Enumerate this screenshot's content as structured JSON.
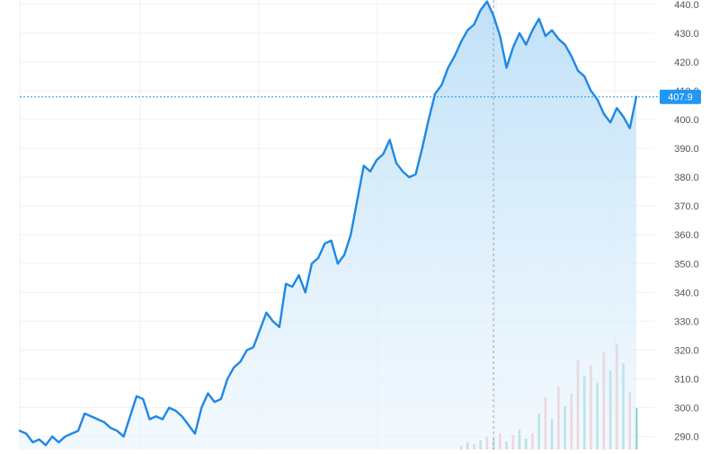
{
  "colors": {
    "line": "#1e88e5",
    "area_top": "#bcdff8",
    "area_bottom": "#eaf5fd",
    "grid": "#eef0f3",
    "axis_text": "#555555",
    "price_badge": "#2196f3",
    "crosshair": "#9aa0a6",
    "volume_up": "#5fbfb4",
    "volume_down": "#ef9a9a"
  },
  "chart_data": {
    "type": "area",
    "title": "",
    "xlabel": "",
    "ylabel": "",
    "ylim": [
      285.5,
      441.5
    ],
    "y_ticks": [
      "290.0",
      "300.0",
      "310.0",
      "320.0",
      "330.0",
      "340.0",
      "350.0",
      "360.0",
      "370.0",
      "380.0",
      "390.0",
      "400.0",
      "410.0",
      "420.0",
      "430.0",
      "440.0"
    ],
    "grid": true,
    "last_price_label": "407.9",
    "last_price": 407.9,
    "crosshair_index": 73,
    "price_series": [
      292,
      291,
      288,
      289,
      287,
      290,
      288,
      290,
      291,
      292,
      298,
      297,
      296,
      295,
      293,
      292,
      290,
      297,
      304,
      303,
      296,
      297,
      296,
      300,
      299,
      297,
      294,
      291,
      300,
      305,
      302,
      303,
      310,
      314,
      316,
      320,
      321,
      327,
      333,
      330,
      328,
      343,
      342,
      346,
      340,
      350,
      352,
      357,
      358,
      350,
      353,
      360,
      372,
      384,
      382,
      386,
      388,
      393,
      385,
      382,
      380,
      381,
      390,
      400,
      409,
      412,
      418,
      422,
      427,
      431,
      433,
      438,
      441,
      436,
      429,
      418,
      425,
      430,
      426,
      431,
      435,
      429,
      431,
      428,
      426,
      422,
      417,
      415,
      410,
      407,
      402,
      399,
      404,
      401,
      397,
      407.9
    ],
    "volume_series": [
      0,
      0,
      0,
      0,
      0,
      0,
      0,
      0,
      0,
      0,
      0,
      0,
      0,
      0,
      0,
      0,
      0,
      0,
      0,
      0,
      0,
      0,
      0,
      0,
      0,
      0,
      0,
      0,
      0,
      0,
      0,
      0,
      0,
      0,
      0,
      0,
      0,
      0,
      0,
      0,
      0,
      0,
      0,
      0,
      0,
      0,
      0,
      0,
      0,
      0,
      0,
      0,
      0,
      0,
      0,
      0,
      0,
      0,
      0,
      0,
      0,
      0,
      0,
      0,
      0,
      0,
      0,
      0,
      4,
      8,
      6,
      10,
      14,
      12,
      18,
      9,
      16,
      22,
      12,
      18,
      40,
      58,
      34,
      70,
      48,
      62,
      100,
      82,
      94,
      74,
      108,
      88,
      118,
      96,
      64,
      46
    ],
    "volume_direction": [
      "up",
      "up",
      "up",
      "up",
      "up",
      "up",
      "up",
      "up",
      "up",
      "up",
      "up",
      "up",
      "up",
      "up",
      "up",
      "up",
      "up",
      "up",
      "up",
      "up",
      "up",
      "up",
      "up",
      "up",
      "up",
      "up",
      "up",
      "up",
      "up",
      "up",
      "up",
      "up",
      "up",
      "up",
      "up",
      "up",
      "up",
      "up",
      "up",
      "up",
      "up",
      "up",
      "up",
      "up",
      "up",
      "up",
      "up",
      "up",
      "up",
      "up",
      "up",
      "up",
      "up",
      "up",
      "up",
      "up",
      "up",
      "up",
      "up",
      "up",
      "up",
      "up",
      "up",
      "up",
      "up",
      "up",
      "up",
      "up",
      "down",
      "up",
      "down",
      "up",
      "down",
      "up",
      "down",
      "up",
      "down",
      "up",
      "up",
      "down",
      "up",
      "down",
      "up",
      "down",
      "up",
      "down",
      "down",
      "up",
      "down",
      "up",
      "down",
      "up",
      "down",
      "up",
      "down",
      "up"
    ]
  }
}
